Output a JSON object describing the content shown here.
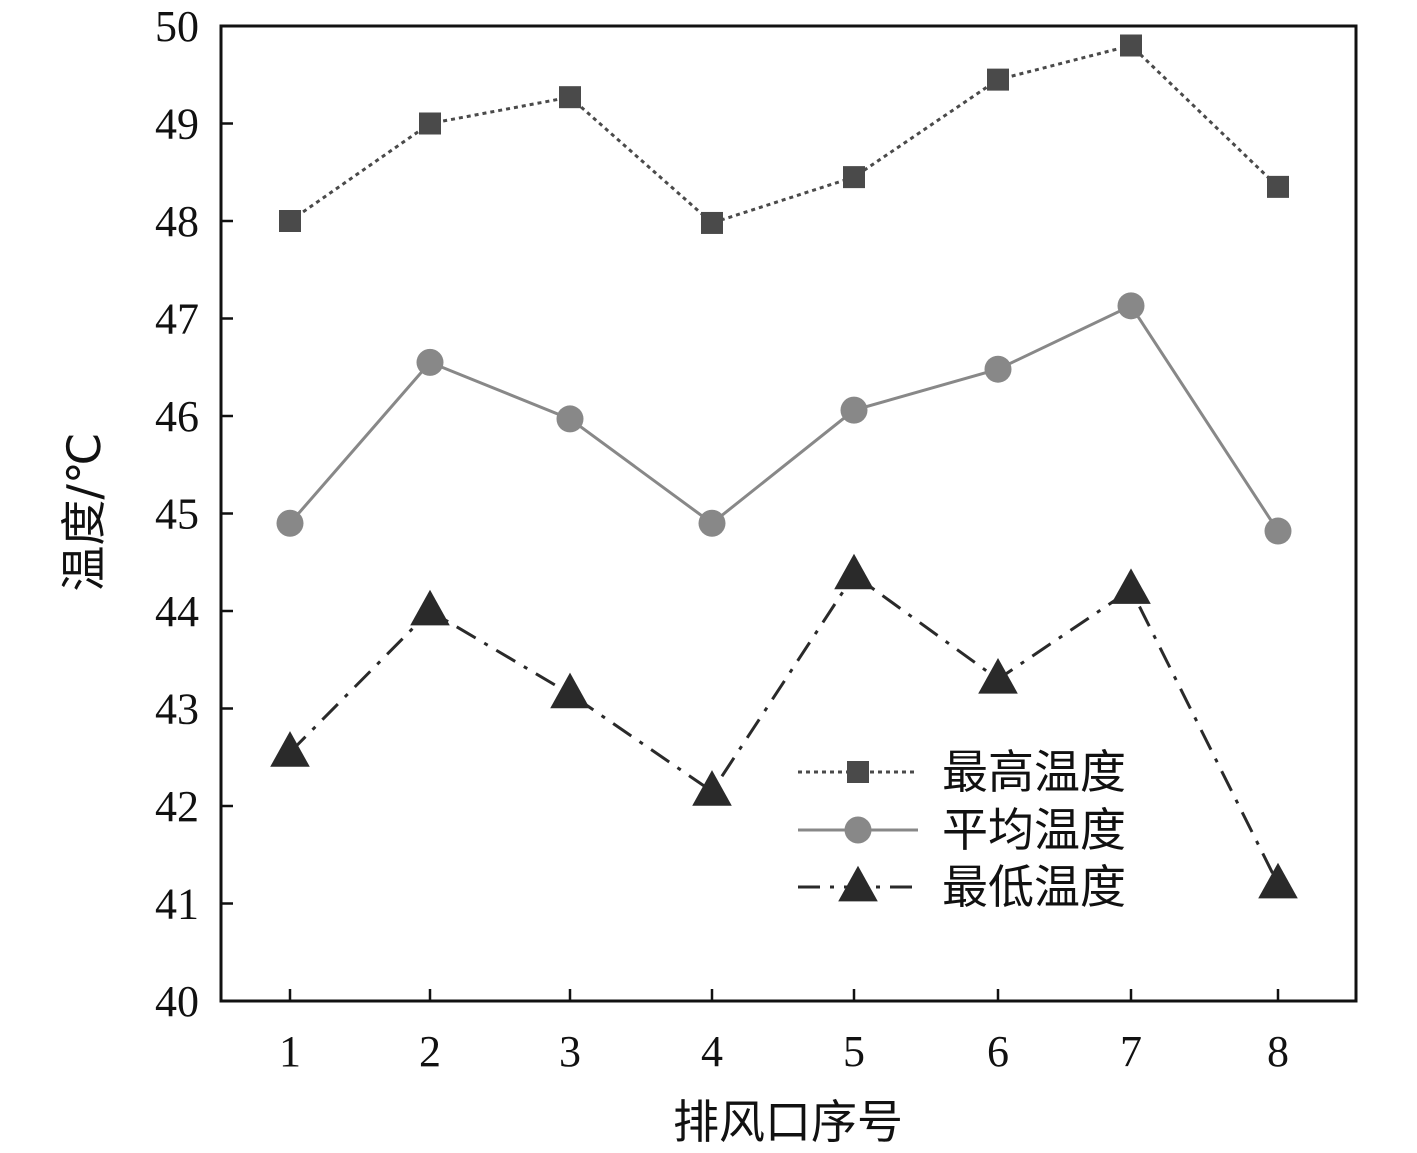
{
  "chart_data": {
    "type": "line",
    "xlabel": "排风口序号",
    "ylabel": "温度/℃",
    "x": [
      1,
      2,
      3,
      4,
      5,
      6,
      7,
      8
    ],
    "xticks": [
      "1",
      "2",
      "3",
      "4",
      "5",
      "6",
      "7",
      "8"
    ],
    "ylim": [
      40,
      50
    ],
    "yticks": [
      "40",
      "41",
      "42",
      "43",
      "44",
      "45",
      "46",
      "47",
      "48",
      "49",
      "50"
    ],
    "grid": false,
    "legend_position": "lower-right",
    "series": [
      {
        "name": "最高温度",
        "values": [
          48.0,
          49.0,
          49.27,
          47.98,
          48.45,
          49.45,
          49.8,
          48.35
        ],
        "color": "#4a4a4a",
        "marker": "square",
        "line_style": "dotted"
      },
      {
        "name": "平均温度",
        "values": [
          44.9,
          46.55,
          45.97,
          44.9,
          46.06,
          46.48,
          47.13,
          44.82
        ],
        "color": "#888888",
        "marker": "circle",
        "line_style": "solid"
      },
      {
        "name": "最低温度",
        "values": [
          42.55,
          44.0,
          43.15,
          42.15,
          44.37,
          43.3,
          44.22,
          41.2
        ],
        "color": "#2a2a2a",
        "marker": "triangle",
        "line_style": "dash-dot"
      }
    ]
  }
}
